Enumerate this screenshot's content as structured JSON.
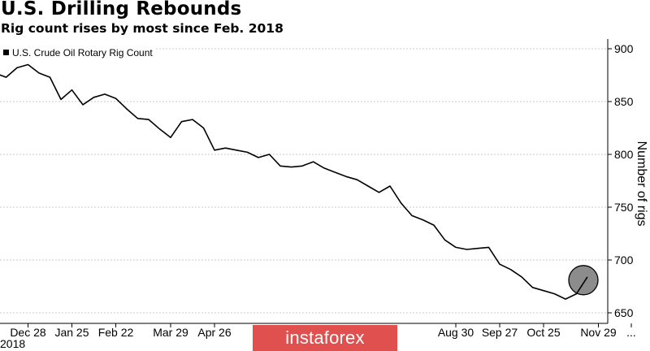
{
  "header": {
    "title": "U.S. Drilling Rebounds",
    "subtitle": "Rig count rises by most since Feb. 2018"
  },
  "watermark": "instaforex",
  "year_label": "2018",
  "colors": {
    "line": "#000000",
    "grid": "#c8c8c8",
    "axis": "#000000",
    "highlight_fill": "#8c8c8c",
    "highlight_stroke": "#000000",
    "watermark_bg": "#e0504e"
  },
  "chart_data": {
    "type": "line",
    "title": "U.S. Drilling Rebounds",
    "subtitle": "Rig count rises by most since Feb. 2018",
    "ylabel": "Number of rigs",
    "xlabel": "",
    "ylim": [
      640,
      905
    ],
    "y_ticks": [
      650,
      700,
      750,
      800,
      850,
      900
    ],
    "y_axis_side": "right",
    "grid": "horizontal dashed",
    "legend": {
      "position": "top-left",
      "entries": [
        "U.S. Crude Oil Rotary Rig Count"
      ]
    },
    "x_tick_labels": [
      "Dec 28",
      "Jan 25",
      "Feb 22",
      "Mar 29",
      "Apr 26",
      "Aug 30",
      "Sep 27",
      "Oct 25",
      "Nov 29",
      "..."
    ],
    "x_tick_index": [
      3,
      7,
      11,
      16,
      20,
      42,
      46,
      50,
      55,
      58
    ],
    "series": [
      {
        "name": "U.S. Crude Oil Rotary Rig Count",
        "values": [
          877,
          873,
          882,
          885,
          877,
          873,
          852,
          861,
          847,
          854,
          857,
          853,
          843,
          834,
          833,
          824,
          816,
          831,
          833,
          825,
          804,
          806,
          804,
          802,
          797,
          800,
          789,
          788,
          789,
          793,
          787,
          783,
          779,
          776,
          770,
          764,
          770,
          754,
          742,
          738,
          733,
          719,
          712,
          710,
          711,
          712,
          696,
          691,
          684,
          674,
          671,
          668,
          663,
          668,
          684
        ]
      }
    ],
    "annotations": [
      {
        "type": "circle-highlight",
        "point_index": 54
      }
    ]
  }
}
